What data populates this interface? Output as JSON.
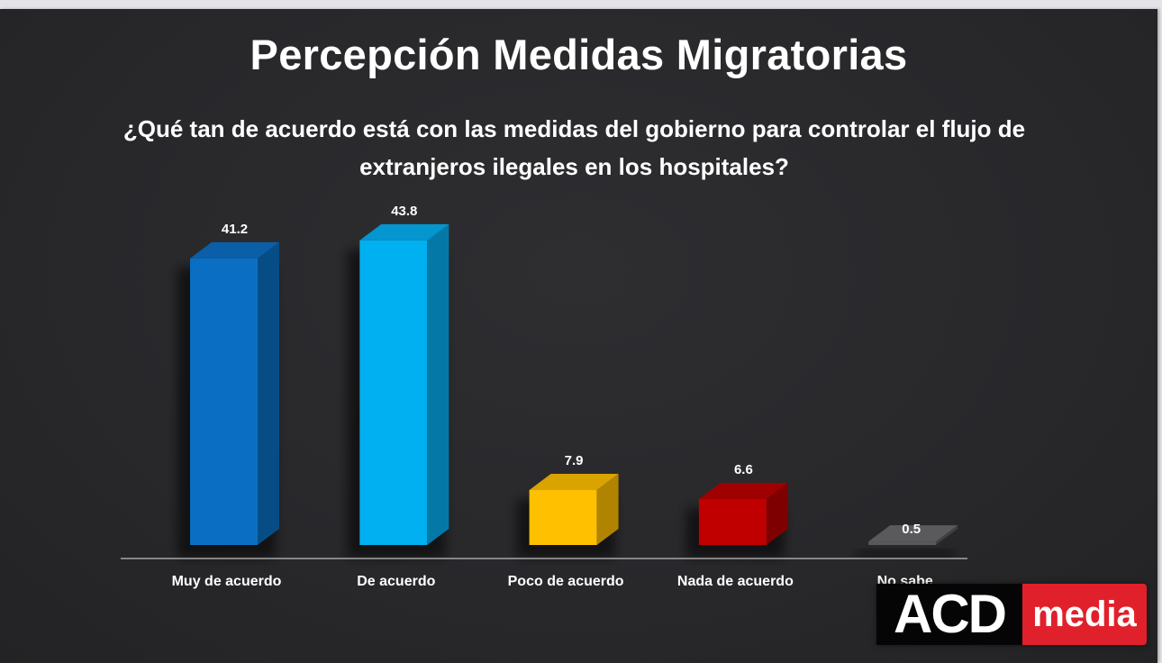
{
  "chart_data": {
    "type": "bar",
    "title": "Percepción Medidas Migratorias",
    "subtitle": "¿Qué tan de acuerdo está con las medidas del gobierno para controlar el flujo de extranjeros ilegales en los hospitales?",
    "categories": [
      "Muy de acuerdo",
      "De acuerdo",
      "Poco de acuerdo",
      "Nada de acuerdo",
      "No sabe"
    ],
    "values": [
      41.2,
      43.8,
      7.9,
      6.6,
      0.5
    ],
    "data_labels": [
      "41.2",
      "43.8",
      "7.9",
      "6.6",
      "0.5"
    ],
    "colors": [
      {
        "front": "#0a6fc2",
        "side": "#064d86",
        "top": "#0a5fa8"
      },
      {
        "front": "#00b0f0",
        "side": "#0479a8",
        "top": "#0596cf"
      },
      {
        "front": "#ffc000",
        "side": "#b08400",
        "top": "#d9a300"
      },
      {
        "front": "#c00000",
        "side": "#7e0000",
        "top": "#a00000"
      },
      {
        "front": "#595959",
        "side": "#3f3f3f",
        "top": "#5a5a5c"
      }
    ],
    "xlabel": "",
    "ylabel": "",
    "ylim": [
      0,
      45
    ],
    "grid": false,
    "legend": "none",
    "style": "3d-column"
  },
  "branding": {
    "logo_left": "ACD",
    "logo_right": "media",
    "logo_left_bg": "#050505",
    "logo_right_bg": "#e0212b"
  },
  "theme": {
    "background": "#2a2a2c",
    "text_color": "#ffffff",
    "axis_color": "#a6a6a6"
  }
}
